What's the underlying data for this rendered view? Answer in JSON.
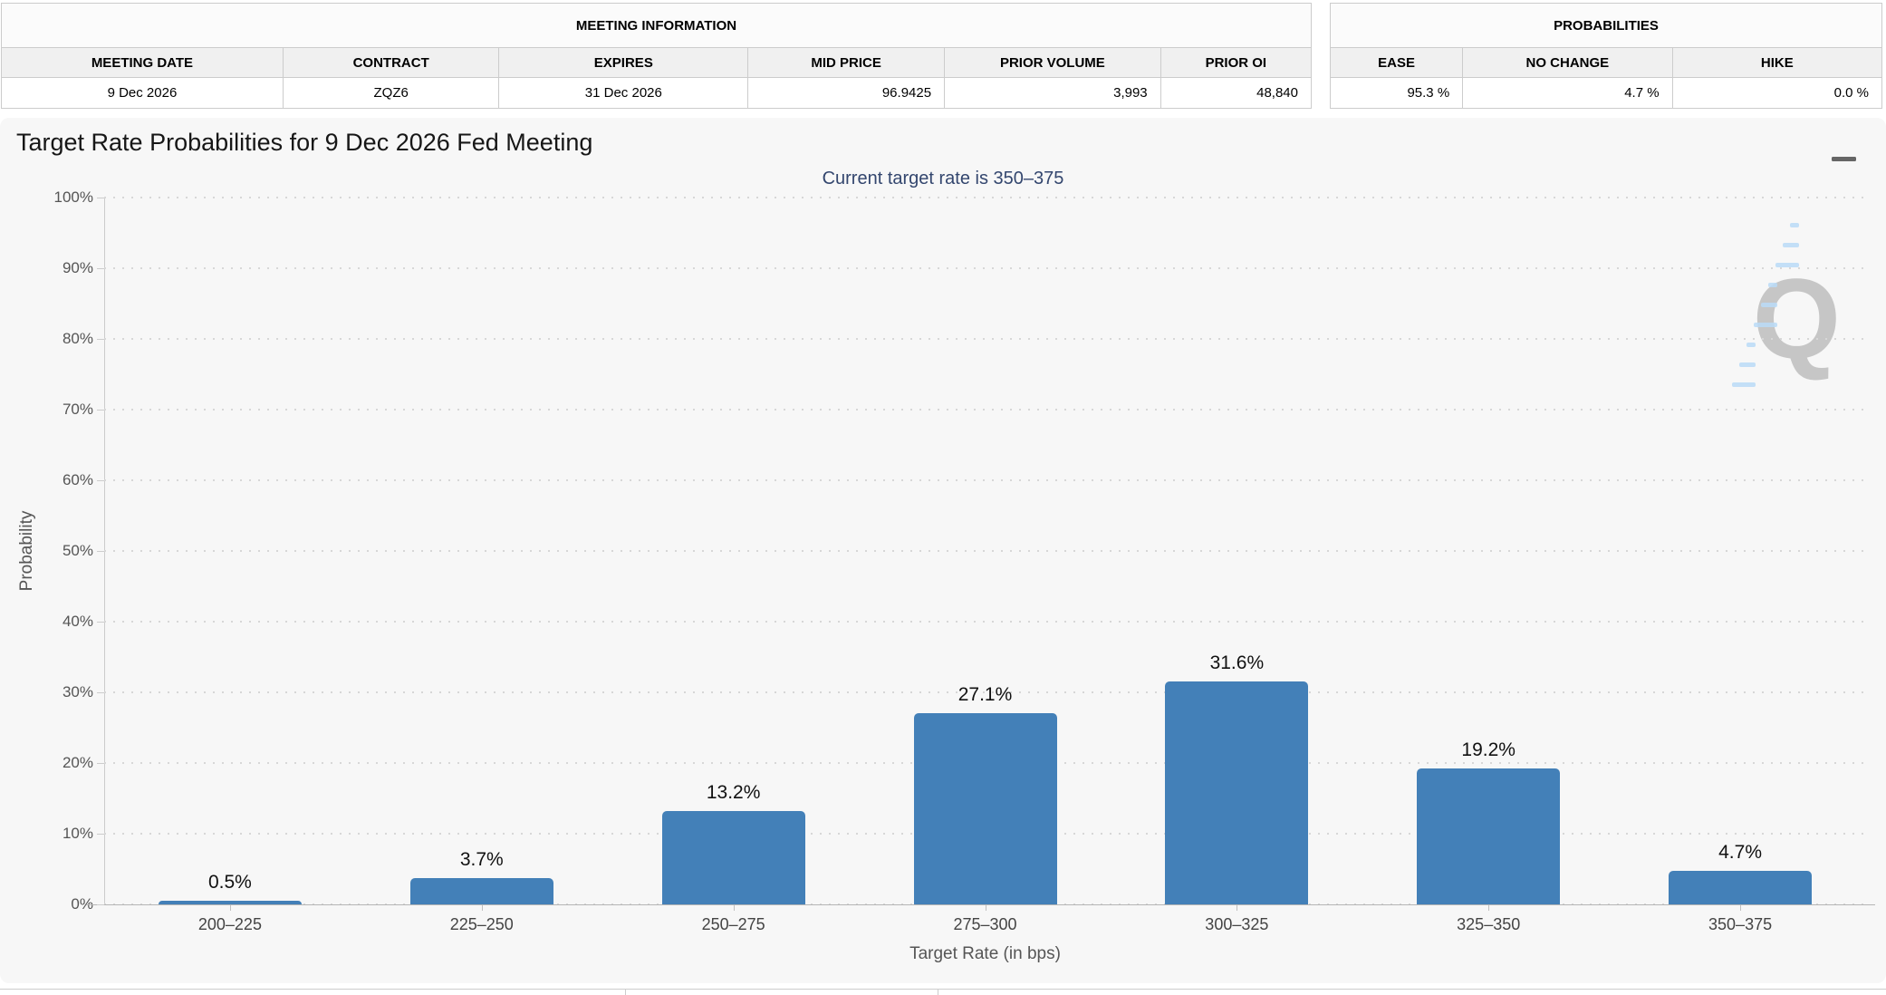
{
  "meeting_table": {
    "caption": "MEETING INFORMATION",
    "headers": [
      "MEETING DATE",
      "CONTRACT",
      "EXPIRES",
      "MID PRICE",
      "PRIOR VOLUME",
      "PRIOR OI"
    ],
    "values": [
      "9 Dec 2026",
      "ZQZ6",
      "31 Dec 2026",
      "96.9425",
      "3,993",
      "48,840"
    ]
  },
  "probabilities_table": {
    "caption": "PROBABILITIES",
    "headers": [
      "EASE",
      "NO CHANGE",
      "HIKE"
    ],
    "values": [
      "95.3 %",
      "4.7 %",
      "0.0 %"
    ]
  },
  "chart_data": {
    "type": "bar",
    "title": "Target Rate Probabilities for 9 Dec 2026 Fed Meeting",
    "subtitle": "Current target rate is 350–375",
    "categories": [
      "200–225",
      "225–250",
      "250–275",
      "275–300",
      "300–325",
      "325–350",
      "350–375"
    ],
    "values": [
      0.5,
      3.7,
      13.2,
      27.1,
      31.6,
      19.2,
      4.7
    ],
    "value_labels": [
      "0.5%",
      "3.7%",
      "13.2%",
      "27.1%",
      "31.6%",
      "19.2%",
      "4.7%"
    ],
    "xlabel": "Target Rate (in bps)",
    "ylabel": "Probability",
    "ylim": [
      0,
      100
    ],
    "ytick_step": 10,
    "ytick_labels": [
      "0%",
      "10%",
      "20%",
      "30%",
      "40%",
      "50%",
      "60%",
      "70%",
      "80%",
      "90%",
      "100%"
    ],
    "grid": "dotted horizontal",
    "legend": "none",
    "bar_color": "#4380b8",
    "watermark_letter": "Q"
  },
  "icons": {
    "menu": "hamburger-menu-icon"
  },
  "colors": {
    "chart_background": "#f7f7f7",
    "page_background": "#ffffff",
    "bar": "#4380b8",
    "subtitle": "#33466e",
    "axis_text": "#555555",
    "table_border": "#cccccc",
    "table_header_bg": "#f0f0f0"
  }
}
